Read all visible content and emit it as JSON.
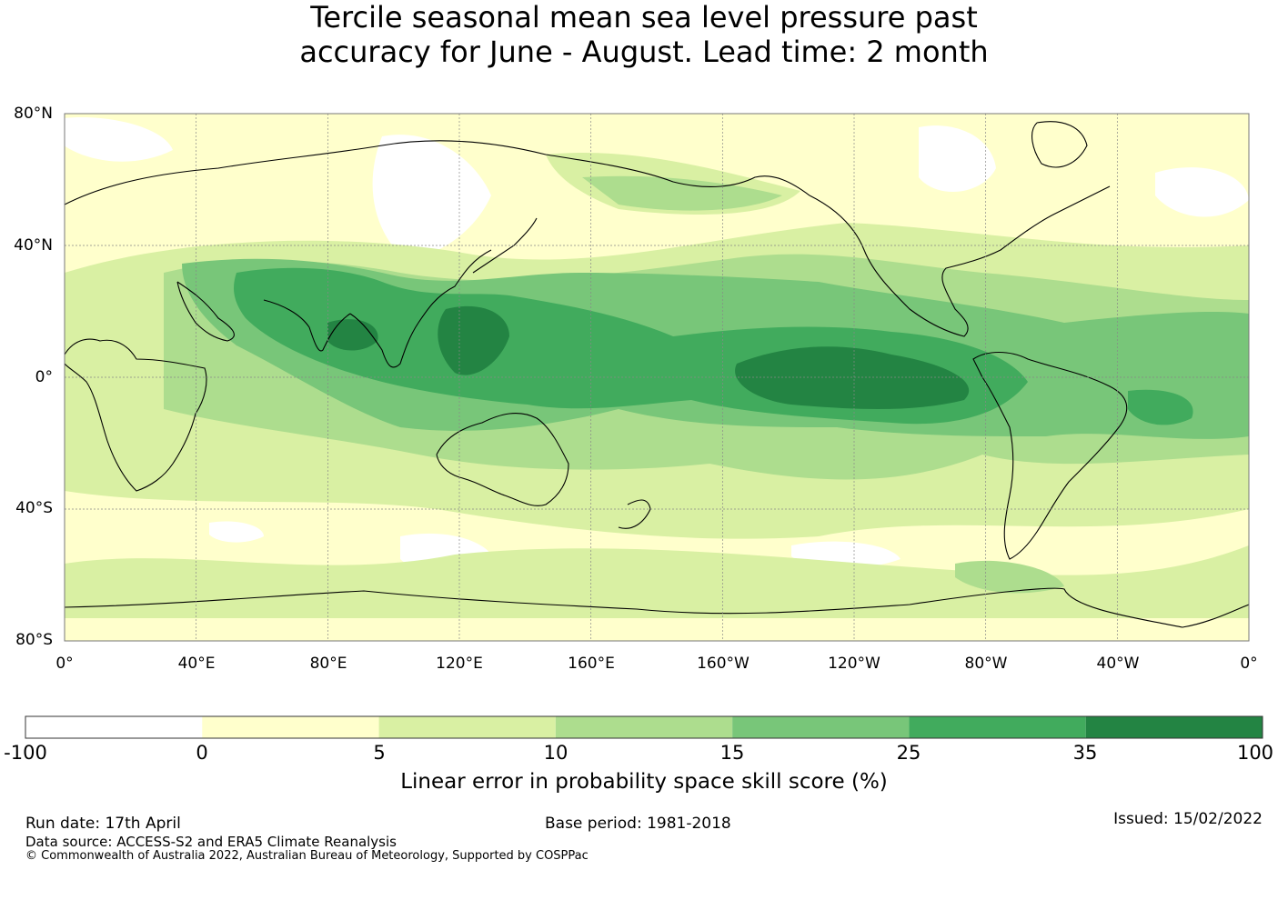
{
  "title": {
    "line1": "Tercile seasonal mean sea level pressure past",
    "line2": "accuracy for June - August. Lead time: 2 month"
  },
  "map": {
    "lat_labels": [
      "80°N",
      "40°N",
      "0°",
      "40°S",
      "80°S"
    ],
    "lon_labels": [
      "0°",
      "40°E",
      "80°E",
      "120°E",
      "160°E",
      "160°W",
      "120°W",
      "80°W",
      "40°W",
      "0°"
    ],
    "lat_range": [
      -80,
      80
    ],
    "lon_range": [
      0,
      360
    ]
  },
  "colorbar": {
    "title": "Linear error in probability space skill score (%)",
    "tick_labels": [
      "-100",
      "0",
      "5",
      "10",
      "15",
      "25",
      "35",
      "100"
    ],
    "colors": [
      "#ffffff",
      "#ffffcc",
      "#d9f0a3",
      "#addd8e",
      "#78c679",
      "#41ab5d",
      "#238443"
    ]
  },
  "footer": {
    "run_date": "Run date: 17th April",
    "base_period": "Base period: 1981-2018",
    "issued": "Issued: 15/02/2022",
    "data_source": "Data source: ACCESS-S2 and ERA5 Climate Reanalysis",
    "copyright": "© Commonwealth of Australia 2022, Australian Bureau of Meteorology, Supported by COSPPac"
  }
}
